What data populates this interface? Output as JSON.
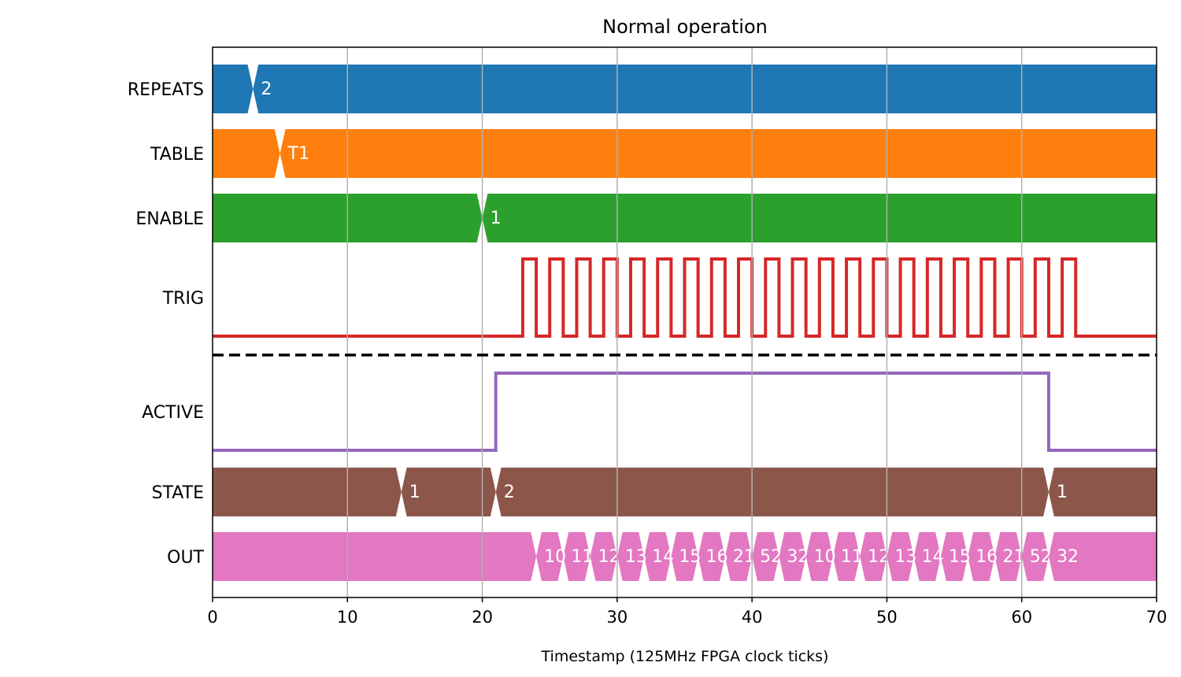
{
  "chart_data": {
    "type": "timing",
    "title": "Normal operation",
    "xlabel": "Timestamp (125MHz FPGA clock ticks)",
    "ylabel": "",
    "xlim": [
      0,
      70
    ],
    "x_ticks": [
      "0",
      "10",
      "20",
      "30",
      "40",
      "50",
      "60",
      "70"
    ],
    "grid": true,
    "series": [
      {
        "name": "REPEATS",
        "kind": "bus",
        "color": "#1f77b4",
        "transitions": [
          {
            "t": 3,
            "label": "2"
          }
        ]
      },
      {
        "name": "TABLE",
        "kind": "bus",
        "color": "#ff7f0e",
        "transitions": [
          {
            "t": 5,
            "label": "T1"
          }
        ]
      },
      {
        "name": "ENABLE",
        "kind": "bus",
        "color": "#2ca02c",
        "transitions": [
          {
            "t": 20,
            "label": "1"
          }
        ]
      },
      {
        "name": "TRIG",
        "kind": "bit",
        "color": "#d62728",
        "edges": [
          [
            0,
            0
          ],
          [
            23,
            1
          ],
          [
            24,
            0
          ],
          [
            25,
            1
          ],
          [
            26,
            0
          ],
          [
            27,
            1
          ],
          [
            28,
            0
          ],
          [
            29,
            1
          ],
          [
            30,
            0
          ],
          [
            31,
            1
          ],
          [
            32,
            0
          ],
          [
            33,
            1
          ],
          [
            34,
            0
          ],
          [
            35,
            1
          ],
          [
            36,
            0
          ],
          [
            37,
            1
          ],
          [
            38,
            0
          ],
          [
            39,
            1
          ],
          [
            40,
            0
          ],
          [
            41,
            1
          ],
          [
            42,
            0
          ],
          [
            43,
            1
          ],
          [
            44,
            0
          ],
          [
            45,
            1
          ],
          [
            46,
            0
          ],
          [
            47,
            1
          ],
          [
            48,
            0
          ],
          [
            49,
            1
          ],
          [
            50,
            0
          ],
          [
            51,
            1
          ],
          [
            52,
            0
          ],
          [
            53,
            1
          ],
          [
            54,
            0
          ],
          [
            55,
            1
          ],
          [
            56,
            0
          ],
          [
            57,
            1
          ],
          [
            58,
            0
          ],
          [
            59,
            1
          ],
          [
            60,
            0
          ],
          [
            61,
            1
          ],
          [
            62,
            0
          ],
          [
            63,
            1
          ],
          [
            64,
            0
          ]
        ]
      },
      {
        "name": "ACTIVE",
        "kind": "bit",
        "color": "#9467bd",
        "edges": [
          [
            0,
            0
          ],
          [
            21,
            1
          ],
          [
            62,
            0
          ]
        ]
      },
      {
        "name": "STATE",
        "kind": "bus",
        "color": "#8c564b",
        "transitions": [
          {
            "t": 14,
            "label": "1"
          },
          {
            "t": 21,
            "label": "2"
          },
          {
            "t": 62,
            "label": "1"
          }
        ]
      },
      {
        "name": "OUT",
        "kind": "bus",
        "color": "#e377c2",
        "transitions": [
          {
            "t": 24,
            "label": "10"
          },
          {
            "t": 26,
            "label": "11"
          },
          {
            "t": 28,
            "label": "12"
          },
          {
            "t": 30,
            "label": "13"
          },
          {
            "t": 32,
            "label": "14"
          },
          {
            "t": 34,
            "label": "15"
          },
          {
            "t": 36,
            "label": "16"
          },
          {
            "t": 38,
            "label": "21"
          },
          {
            "t": 40,
            "label": "52"
          },
          {
            "t": 42,
            "label": "32"
          },
          {
            "t": 44,
            "label": "10"
          },
          {
            "t": 46,
            "label": "11"
          },
          {
            "t": 48,
            "label": "12"
          },
          {
            "t": 50,
            "label": "13"
          },
          {
            "t": 52,
            "label": "14"
          },
          {
            "t": 54,
            "label": "15"
          },
          {
            "t": 56,
            "label": "16"
          },
          {
            "t": 58,
            "label": "21"
          },
          {
            "t": 60,
            "label": "52"
          },
          {
            "t": 62,
            "label": "32"
          }
        ]
      }
    ],
    "divider_after": "TRIG"
  }
}
